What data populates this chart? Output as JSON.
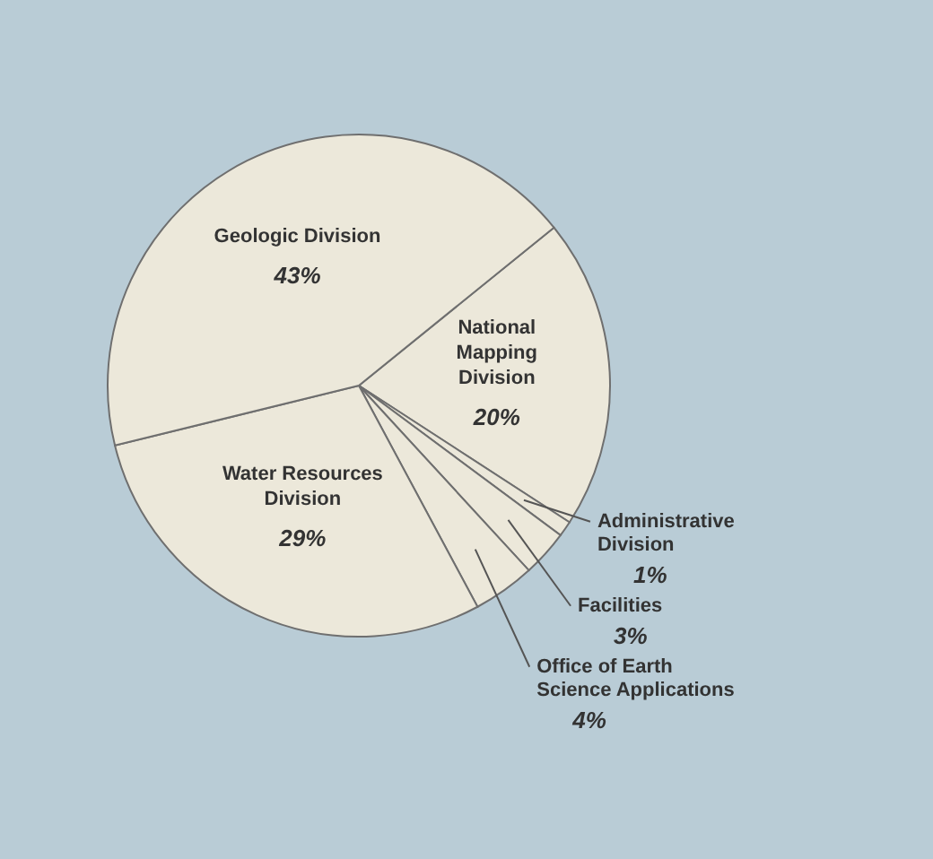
{
  "chart_data": {
    "type": "pie",
    "categories": [
      "National Mapping Division",
      "Administrative Division",
      "Facilities",
      "Office of Earth Science Applications",
      "Water Resources Division",
      "Geologic Division"
    ],
    "values": [
      20,
      1,
      3,
      4,
      29,
      43
    ],
    "value_labels": [
      "20%",
      "1%",
      "3%",
      "4%",
      "29%",
      "43%"
    ],
    "colors": [
      "#ece8da",
      "#ece8da",
      "#ece8da",
      "#ece8da",
      "#ece8da",
      "#ece8da"
    ],
    "legend": false
  }
}
